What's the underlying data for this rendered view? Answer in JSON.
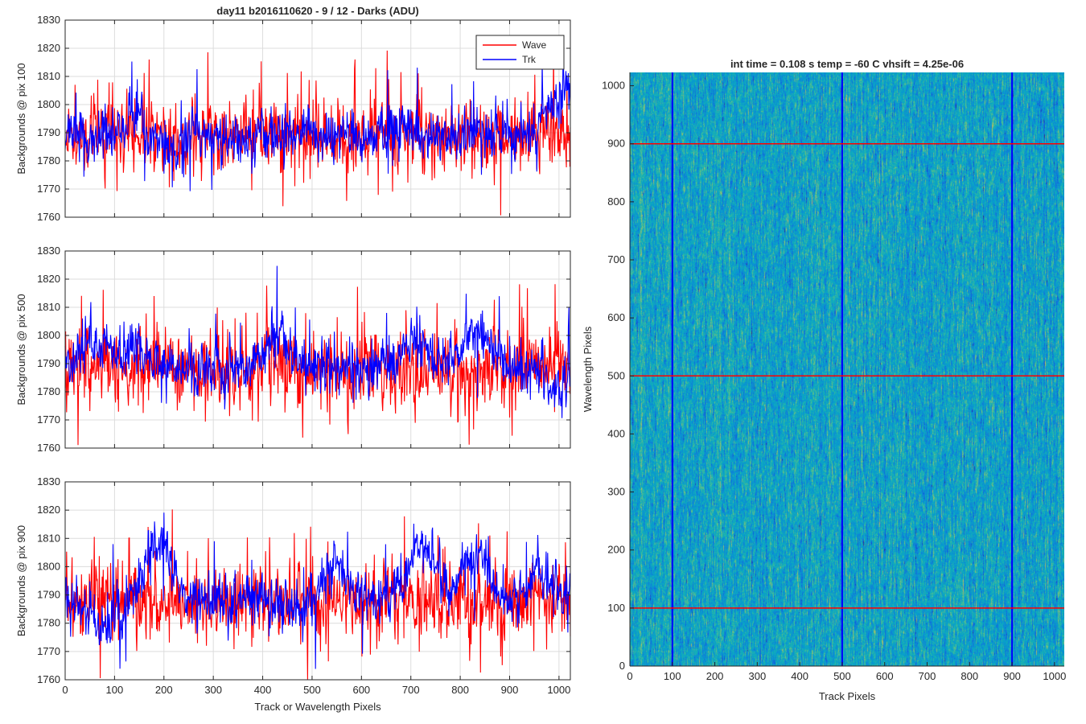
{
  "figure": {
    "title": "day11 b2016110620 - 9 / 12 - Darks (ADU)"
  },
  "chart_data": [
    {
      "type": "line",
      "xlim": [
        0,
        1023
      ],
      "ylim": [
        1760,
        1830
      ],
      "xticks": [
        0,
        100,
        200,
        300,
        400,
        500,
        600,
        700,
        800,
        900,
        1000
      ],
      "yticks": [
        1760,
        1770,
        1780,
        1790,
        1800,
        1810,
        1820,
        1830
      ],
      "show_xticklabels": false,
      "ylabel": "Backgrounds @ pix 100",
      "xlabel": "",
      "grid": true,
      "legend": {
        "placement": "top-right",
        "entries": [
          "Wave",
          "Trk"
        ]
      },
      "series": [
        {
          "name": "Wave",
          "color": "#ff0000",
          "baseline": 1789,
          "amplitude": 6,
          "spike_prob": 0.08,
          "seed": 11,
          "features": []
        },
        {
          "name": "Trk",
          "color": "#0000ff",
          "baseline": 1789,
          "amplitude": 4.5,
          "spike_prob": 0.02,
          "seed": 23,
          "features": [
            [
              140,
              18,
              7
            ],
            [
              1010,
              25,
              16
            ],
            [
              220,
              15,
              -6
            ]
          ]
        }
      ]
    },
    {
      "type": "line",
      "xlim": [
        0,
        1023
      ],
      "ylim": [
        1760,
        1830
      ],
      "xticks": [
        0,
        100,
        200,
        300,
        400,
        500,
        600,
        700,
        800,
        900,
        1000
      ],
      "yticks": [
        1760,
        1770,
        1780,
        1790,
        1800,
        1810,
        1820,
        1830
      ],
      "show_xticklabels": false,
      "ylabel": "Backgrounds @ pix 500",
      "xlabel": "",
      "grid": true,
      "series": [
        {
          "name": "Wave",
          "color": "#ff0000",
          "baseline": 1788,
          "amplitude": 6,
          "spike_prob": 0.09,
          "seed": 37,
          "features": []
        },
        {
          "name": "Trk",
          "color": "#0000ff",
          "baseline": 1788,
          "amplitude": 4.5,
          "spike_prob": 0.02,
          "seed": 41,
          "features": [
            [
              60,
              25,
              12
            ],
            [
              140,
              20,
              9
            ],
            [
              430,
              25,
              13
            ],
            [
              710,
              25,
              10
            ],
            [
              830,
              30,
              12
            ],
            [
              1000,
              25,
              -6
            ]
          ]
        }
      ]
    },
    {
      "type": "line",
      "xlim": [
        0,
        1023
      ],
      "ylim": [
        1760,
        1830
      ],
      "xticks": [
        0,
        100,
        200,
        300,
        400,
        500,
        600,
        700,
        800,
        900,
        1000
      ],
      "yticks": [
        1760,
        1770,
        1780,
        1790,
        1800,
        1810,
        1820,
        1830
      ],
      "show_xticklabels": true,
      "ylabel": "Backgrounds @ pix 900",
      "xlabel": "Track or Wavelength Pixels",
      "grid": true,
      "series": [
        {
          "name": "Wave",
          "color": "#ff0000",
          "baseline": 1788,
          "amplitude": 6,
          "spike_prob": 0.09,
          "seed": 53,
          "features": []
        },
        {
          "name": "Trk",
          "color": "#0000ff",
          "baseline": 1787,
          "amplitude": 4.5,
          "spike_prob": 0.02,
          "seed": 67,
          "features": [
            [
              80,
              20,
              -9
            ],
            [
              190,
              25,
              20
            ],
            [
              550,
              25,
              14
            ],
            [
              720,
              30,
              19
            ],
            [
              830,
              30,
              17
            ],
            [
              960,
              30,
              10
            ]
          ]
        }
      ]
    },
    {
      "type": "heatmap",
      "title": "int time = 0.108 s   temp = -60 C   vhsift = 4.25e-06",
      "xlabel": "Track Pixels",
      "ylabel": "Wavelength Pixels",
      "xlim": [
        0,
        1023
      ],
      "ylim": [
        0,
        1023
      ],
      "xticks": [
        0,
        100,
        200,
        300,
        400,
        500,
        600,
        700,
        800,
        900,
        1000
      ],
      "yticks": [
        0,
        100,
        200,
        300,
        400,
        500,
        600,
        700,
        800,
        900,
        1000
      ],
      "colormap": "parula",
      "vertical_lines": {
        "color": "#0000ff",
        "x": [
          100,
          500,
          900
        ]
      },
      "horizontal_lines": {
        "color": "#ff0000",
        "y": [
          100,
          500,
          900
        ]
      }
    }
  ]
}
